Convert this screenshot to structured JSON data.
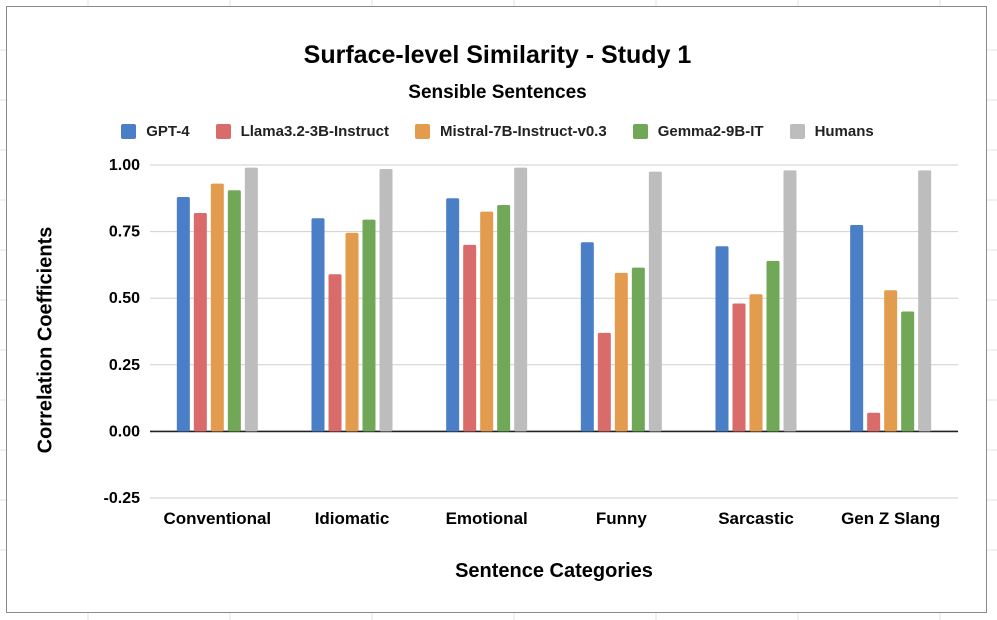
{
  "chart_data": {
    "type": "bar",
    "title": "Surface-level Similarity - Study 1",
    "subtitle": "Sensible Sentences",
    "xlabel": "Sentence Categories",
    "ylabel": "Correlation Coefficients",
    "ylim": [
      -0.25,
      1.0
    ],
    "yticks": [
      1.0,
      0.75,
      0.5,
      0.25,
      0.0,
      -0.25
    ],
    "ytick_labels": [
      "1.00",
      "0.75",
      "0.50",
      "0.25",
      "0.00",
      "-0.25"
    ],
    "grid": true,
    "legend_position": "top",
    "categories": [
      "Conventional",
      "Idiomatic",
      "Emotional",
      "Funny",
      "Sarcastic",
      "Gen Z Slang"
    ],
    "series": [
      {
        "name": "GPT-4",
        "color": "#4a7ec7",
        "values": [
          0.88,
          0.8,
          0.875,
          0.71,
          0.695,
          0.775
        ]
      },
      {
        "name": "Llama3.2-3B-Instruct",
        "color": "#d96b6b",
        "values": [
          0.82,
          0.59,
          0.7,
          0.37,
          0.48,
          0.07
        ]
      },
      {
        "name": "Mistral-7B-Instruct-v0.3",
        "color": "#e39b4e",
        "values": [
          0.93,
          0.745,
          0.825,
          0.595,
          0.515,
          0.53
        ]
      },
      {
        "name": "Gemma2-9B-IT",
        "color": "#70a857",
        "values": [
          0.905,
          0.795,
          0.85,
          0.615,
          0.64,
          0.45
        ]
      },
      {
        "name": "Humans",
        "color": "#bdbdbd",
        "values": [
          0.99,
          0.985,
          0.99,
          0.975,
          0.98,
          0.98
        ]
      }
    ]
  }
}
